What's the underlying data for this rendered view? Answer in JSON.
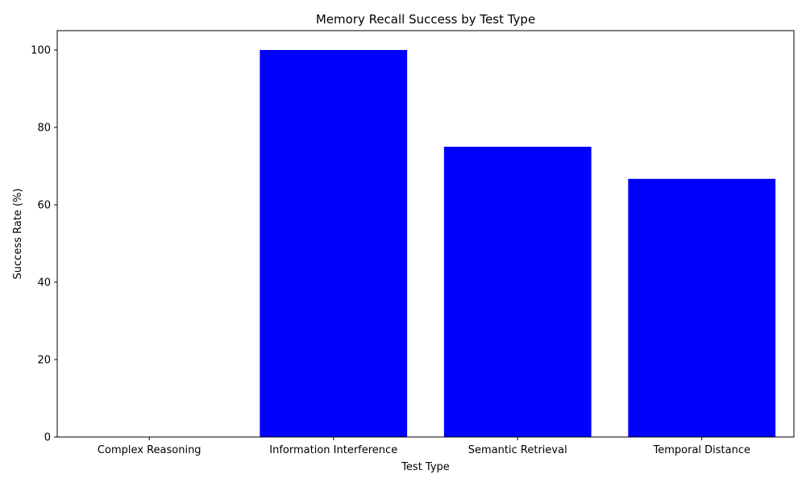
{
  "chart_data": {
    "type": "bar",
    "title": "Memory Recall Success by Test Type",
    "xlabel": "Test Type",
    "ylabel": "Success Rate (%)",
    "categories": [
      "Complex Reasoning",
      "Information Interference",
      "Semantic Retrieval",
      "Temporal Distance"
    ],
    "values": [
      0,
      100,
      75,
      66.7
    ],
    "ylim": [
      0,
      105
    ],
    "yticks": [
      0,
      20,
      40,
      60,
      80,
      100
    ],
    "bar_color": "#0000ff",
    "grid": false,
    "legend": "none"
  }
}
